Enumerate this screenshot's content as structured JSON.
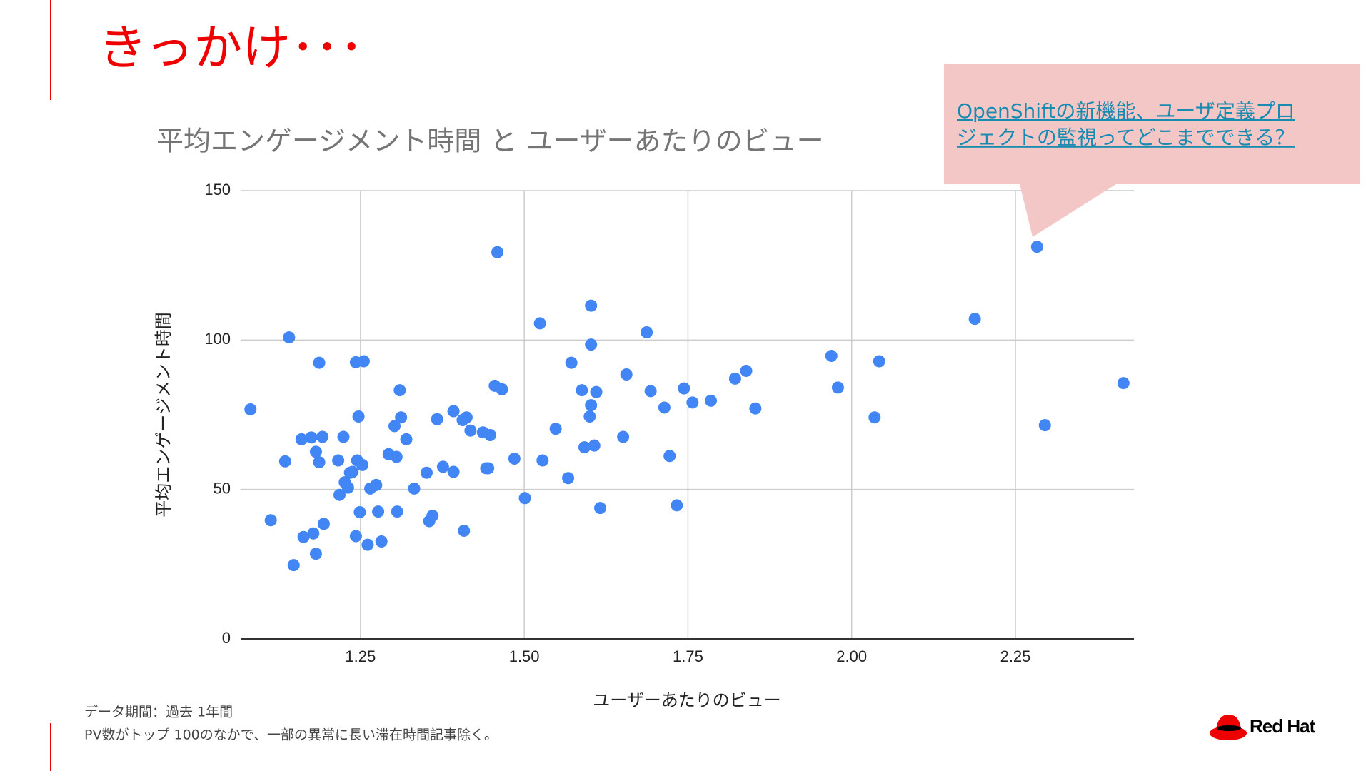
{
  "slide_title": "きっかけ･･･",
  "callout": [
    "OpenShiftの新機能、ユーザ定義プロ",
    "ジェクトの監視ってどこまでできる？"
  ],
  "notes": [
    "データ期間：過去 1年間",
    "PV数がトップ 100のなかで、一部の異常に長い滞在時間記事除く。"
  ],
  "logo": "Red Hat",
  "chart_data": {
    "type": "scatter",
    "title": "平均エンゲージメント時間 と ユーザーあたりのビュー",
    "x_label": "ユーザーあたりのビュー",
    "y_label": "平均エンゲージメント時間",
    "color": "#4285f4",
    "grid": true,
    "xlim": [
      1.067,
      2.431
    ],
    "ylim": [
      0,
      150
    ],
    "xticks": [
      {
        "value": 1.25,
        "label": "1.25"
      },
      {
        "value": 1.5,
        "label": "1.50"
      },
      {
        "value": 1.75,
        "label": "1.75"
      },
      {
        "value": 2.0,
        "label": "2.00"
      },
      {
        "value": 2.25,
        "label": "2.25"
      }
    ],
    "yticks": [
      0,
      50,
      100,
      150
    ],
    "x": [
      1.082,
      1.113,
      1.135,
      1.141,
      1.148,
      1.16,
      1.163,
      1.175,
      1.178,
      1.182,
      1.182,
      1.187,
      1.187,
      1.192,
      1.194,
      1.216,
      1.218,
      1.224,
      1.226,
      1.231,
      1.234,
      1.238,
      1.243,
      1.245,
      1.243,
      1.247,
      1.249,
      1.253,
      1.255,
      1.261,
      1.265,
      1.274,
      1.277,
      1.282,
      1.293,
      1.302,
      1.305,
      1.306,
      1.31,
      1.312,
      1.32,
      1.332,
      1.351,
      1.355,
      1.36,
      1.367,
      1.376,
      1.392,
      1.392,
      1.406,
      1.408,
      1.412,
      1.418,
      1.437,
      1.442,
      1.445,
      1.448,
      1.455,
      1.459,
      1.466,
      1.485,
      1.501,
      1.524,
      1.528,
      1.548,
      1.567,
      1.572,
      1.588,
      1.592,
      1.602,
      1.602,
      1.602,
      1.6,
      1.607,
      1.61,
      1.616,
      1.651,
      1.656,
      1.687,
      1.693,
      1.714,
      1.722,
      1.733,
      1.744,
      1.757,
      1.785,
      1.822,
      1.839,
      1.853,
      1.969,
      1.979,
      2.035,
      2.042,
      2.188,
      2.283,
      2.295,
      2.415
    ],
    "values": [
      76.8,
      39.7,
      59.4,
      100.9,
      24.7,
      66.8,
      34.1,
      67.4,
      35.3,
      62.6,
      28.5,
      92.4,
      59.1,
      67.6,
      38.5,
      59.7,
      48.2,
      67.6,
      52.4,
      50.6,
      55.6,
      55.9,
      92.6,
      59.7,
      34.4,
      74.4,
      42.4,
      58.2,
      92.9,
      31.5,
      50.3,
      51.5,
      42.6,
      32.6,
      61.8,
      71.2,
      60.9,
      42.6,
      83.2,
      74.1,
      66.8,
      50.3,
      55.6,
      39.4,
      41.2,
      73.5,
      57.6,
      55.9,
      76.2,
      73.2,
      36.2,
      74.1,
      69.7,
      69.1,
      57.1,
      57.1,
      68.2,
      84.7,
      129.4,
      83.5,
      60.3,
      47.1,
      105.6,
      59.7,
      70.3,
      53.8,
      92.4,
      83.2,
      64.1,
      111.5,
      98.5,
      78.2,
      74.4,
      64.7,
      82.6,
      43.8,
      67.6,
      88.5,
      102.6,
      82.9,
      77.4,
      61.2,
      44.7,
      83.8,
      79.1,
      79.7,
      87.1,
      89.7,
      77.1,
      94.7,
      84.1,
      74.1,
      92.9,
      107.1,
      131.2,
      71.5,
      85.6
    ]
  }
}
